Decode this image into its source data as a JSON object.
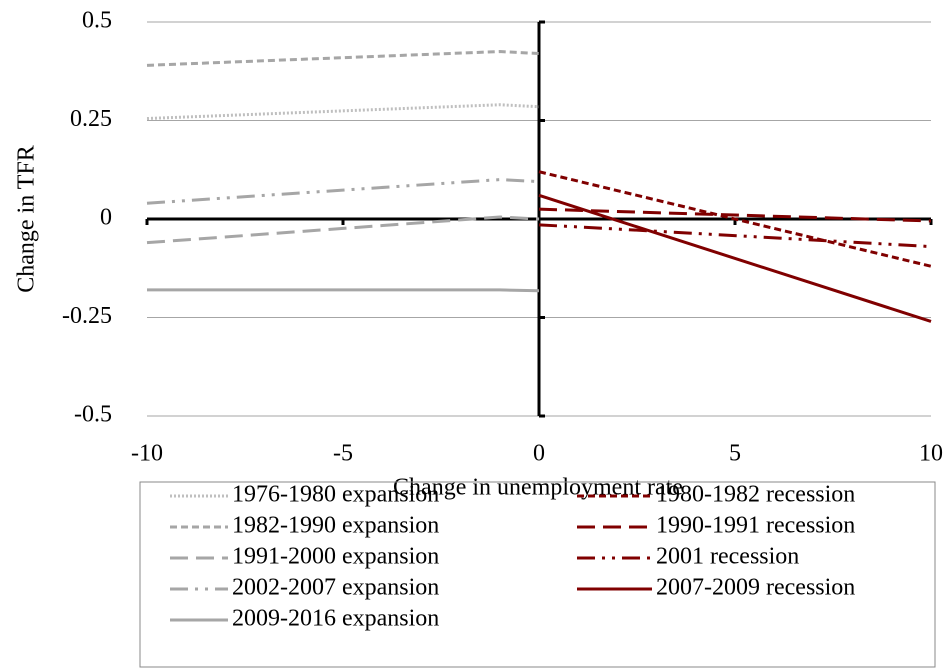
{
  "chart_data": {
    "type": "line",
    "xlabel": "Change in unemployment rate",
    "ylabel": "Change in TFR",
    "xlim": [
      -10,
      10
    ],
    "xticks": [
      -10,
      -5,
      0,
      5,
      10
    ],
    "ylim": [
      -0.5,
      0.5
    ],
    "yticks": [
      -0.5,
      -0.25,
      0,
      0.25,
      0.5
    ],
    "grid": true,
    "legend": "bottom",
    "series": [
      {
        "name": "1976-1980 expansion",
        "color": "#bfbfbf",
        "style": "dotted",
        "x": [
          -10,
          -1,
          0
        ],
        "values": [
          0.255,
          0.29,
          0.285
        ]
      },
      {
        "name": "1982-1990 expansion",
        "color": "#a6a6a6",
        "style": "dashed",
        "x": [
          -10,
          -1,
          0
        ],
        "values": [
          0.39,
          0.425,
          0.42
        ]
      },
      {
        "name": "1991-2000 expansion",
        "color": "#a6a6a6",
        "style": "long-dash",
        "x": [
          -10,
          -1,
          0
        ],
        "values": [
          -0.06,
          0.005,
          0.0
        ]
      },
      {
        "name": "2002-2007 expansion",
        "color": "#a6a6a6",
        "style": "long-dash-dot-dot",
        "x": [
          -10,
          -1,
          0
        ],
        "values": [
          0.04,
          0.1,
          0.095
        ]
      },
      {
        "name": "2009-2016 expansion",
        "color": "#a6a6a6",
        "style": "solid",
        "x": [
          -10,
          -1,
          0
        ],
        "values": [
          -0.18,
          -0.18,
          -0.182
        ]
      },
      {
        "name": "1980-1982 recession",
        "color": "#800000",
        "style": "dashed",
        "x": [
          0,
          10
        ],
        "values": [
          0.12,
          -0.12
        ]
      },
      {
        "name": "1990-1991 recession",
        "color": "#800000",
        "style": "long-dash",
        "x": [
          0,
          10
        ],
        "values": [
          0.025,
          -0.005
        ]
      },
      {
        "name": "2001 recession",
        "color": "#800000",
        "style": "long-dash-dot-dot",
        "x": [
          0,
          1,
          10
        ],
        "values": [
          -0.015,
          -0.02,
          -0.07
        ]
      },
      {
        "name": "2007-2009 recession",
        "color": "#800000",
        "style": "solid",
        "x": [
          0,
          10
        ],
        "values": [
          0.06,
          -0.26
        ]
      }
    ]
  }
}
